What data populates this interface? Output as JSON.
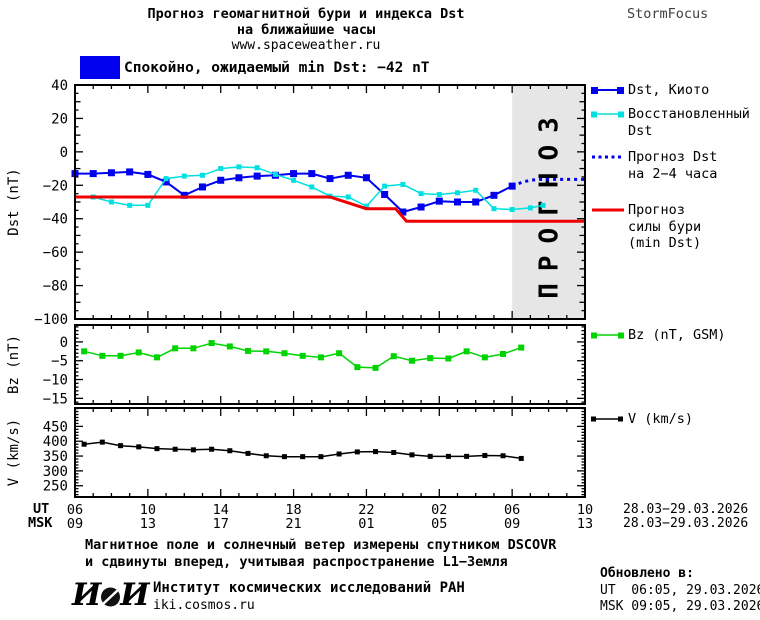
{
  "header": {
    "title_line1": "Прогноз геомагнитной бури и индекса Dst",
    "title_line2": "на ближайшие часы",
    "title_url": "www.spaceweather.ru",
    "brand": "StormFocus"
  },
  "banner": {
    "status_label": "Спокойно, ожидаемый min Dst: −42 nT",
    "swatch_color": "#0000ee"
  },
  "legend": {
    "items": [
      {
        "label": "Dst, Киото",
        "color": "#0000ee",
        "style": "line-markers"
      },
      {
        "lines": [
          "Восстановленный",
          "Dst"
        ],
        "color": "#00e0e0",
        "style": "line-markers"
      },
      {
        "lines": [
          "Прогноз Dst",
          "на 2−4 часа"
        ],
        "color": "#0000ee",
        "style": "dotted"
      },
      {
        "lines": [
          "Прогноз",
          "силы бури",
          "(min Dst)"
        ],
        "color": "#ee0000",
        "style": "solid"
      },
      {
        "label": "Bz (nT, GSM)",
        "color": "#00d400",
        "style": "line-markers"
      },
      {
        "label": "V (km/s)",
        "color": "#000000",
        "style": "line-markers"
      }
    ]
  },
  "xaxis": {
    "ut_label": "UT",
    "msk_label": "MSK",
    "ut_ticks": [
      "06",
      "10",
      "14",
      "18",
      "22",
      "02",
      "06",
      "10"
    ],
    "msk_ticks": [
      "09",
      "13",
      "17",
      "21",
      "01",
      "05",
      "09",
      "13"
    ],
    "ut_date": "28.03−29.03.2026",
    "msk_date": "28.03−29.03.2026"
  },
  "footer": {
    "note_line1": "Магнитное поле и солнечный ветер измерены спутником DSCOVR",
    "note_line2": "и сдвинуты вперед, учитывая распространение L1−Земля",
    "logo_left": "И",
    "logo_right": "И",
    "institute": "Институт космических исследований РАН",
    "site": "iki.cosmos.ru",
    "updated_label": "Обновлено в:",
    "updated_ut": "UT  06:05, 29.03.2026",
    "updated_msk": "MSK 09:05, 29.03.2026"
  },
  "chart_data": [
    {
      "type": "line",
      "title": "Прогноз геомагнитной бури и индекса Dst на ближайшие часы",
      "ylabel": "Dst (nT)",
      "xlim": [
        0,
        28
      ],
      "ylim": [
        40,
        -100
      ],
      "yticks": [
        40,
        20,
        0,
        -20,
        -40,
        -60,
        -80,
        -100
      ],
      "ytick_mid": 10,
      "ytick_minor": 5,
      "xtick_major_step": 4,
      "xtick_minor_step": 1,
      "grid": false,
      "legend_position": "right",
      "forecast_region": {
        "x0": 24,
        "x1": 28,
        "color": "#e6e6e6",
        "label": "ПРОГНОЗ",
        "label_color": "#c8c8c8"
      },
      "series": [
        {
          "name": "Dst, Киото",
          "color": "#0000ee",
          "style": "solid",
          "width": 2,
          "marker": 7,
          "x": [
            0,
            1,
            2,
            3,
            4,
            5,
            6,
            7,
            8,
            9,
            10,
            11,
            12,
            13,
            14,
            15,
            16,
            17,
            18,
            19,
            20,
            21,
            22,
            23,
            24
          ],
          "y": [
            -13,
            -13,
            -12.5,
            -12,
            -13.5,
            -18,
            -26,
            -21,
            -17,
            -15.5,
            -14.5,
            -14,
            -13,
            -13,
            -16,
            -14,
            -15.5,
            -25.5,
            -36,
            -33,
            -29.5,
            -30,
            -30,
            -26,
            -20.5
          ]
        },
        {
          "name": "Восстановленный Dst",
          "color": "#00e0e0",
          "style": "solid",
          "width": 1.5,
          "marker": 5,
          "x": [
            1,
            2,
            3,
            4,
            5,
            6,
            7,
            8,
            9,
            10,
            11,
            12,
            13,
            14,
            15,
            16,
            17,
            18,
            19,
            20,
            21,
            22,
            23,
            24,
            25,
            25.7
          ],
          "y": [
            -27,
            -30,
            -32,
            -32,
            -16,
            -14.5,
            -14,
            -10,
            -9,
            -9.5,
            -13.5,
            -17,
            -21,
            -26.5,
            -27,
            -32.5,
            -20.5,
            -19.5,
            -25,
            -25.5,
            -24.5,
            -23,
            -34,
            -34.5,
            -33.5,
            -32
          ]
        },
        {
          "name": "Прогноз Dst на 2−4 часа",
          "color": "#0000ee",
          "style": "dotted",
          "width": 3,
          "marker": 0,
          "x": [
            24,
            24.6,
            25,
            25.4,
            25.8,
            26.2,
            26.6,
            27,
            27.4,
            27.8,
            28
          ],
          "y": [
            -20.5,
            -18,
            -17,
            -16.5,
            -16.5,
            -16.5,
            -16.5,
            -16.5,
            -16.5,
            -16.5,
            -16.5
          ]
        },
        {
          "name": "Прогноз силы бури (min Dst)",
          "color": "#ee0000",
          "style": "solid",
          "width": 3,
          "marker": 0,
          "x": [
            0,
            14,
            16,
            17.6,
            18.2,
            28
          ],
          "y": [
            -27,
            -27,
            -34,
            -34,
            -41.5,
            -41.5
          ]
        }
      ]
    },
    {
      "type": "line",
      "ylabel": "Bz (nT)",
      "xlim": [
        0,
        28
      ],
      "ylim": [
        4.5,
        -16.5
      ],
      "yticks": [
        0,
        -5,
        -10,
        -15
      ],
      "ytick_mid": null,
      "ytick_minor": 1,
      "xtick_major_step": 4,
      "xtick_minor_step": 1,
      "grid": false,
      "series": [
        {
          "name": "Bz (nT, GSM)",
          "color": "#00d400",
          "style": "solid",
          "width": 1.5,
          "marker": 6,
          "x": [
            0.5,
            1.5,
            2.5,
            3.5,
            4.5,
            5.5,
            6.5,
            7.5,
            8.5,
            9.5,
            10.5,
            11.5,
            12.5,
            13.5,
            14.5,
            15.5,
            16.5,
            17.5,
            18.5,
            19.5,
            20.5,
            21.5,
            22.5,
            23.5,
            24.5
          ],
          "y": [
            -2.5,
            -3.7,
            -3.7,
            -2.8,
            -4.1,
            -1.7,
            -1.7,
            -0.3,
            -1.2,
            -2.4,
            -2.5,
            -3,
            -3.7,
            -4.1,
            -3,
            -6.7,
            -6.9,
            -3.8,
            -5,
            -4.3,
            -4.4,
            -2.5,
            -4.1,
            -3.2,
            -1.5
          ]
        }
      ]
    },
    {
      "type": "line",
      "ylabel": "V (km/s)",
      "xlim": [
        0,
        28
      ],
      "ylim": [
        512,
        212
      ],
      "yticks": [
        450,
        400,
        350,
        300,
        250
      ],
      "ytick_mid": null,
      "ytick_minor": 10,
      "xtick_major_step": 4,
      "xtick_minor_step": 1,
      "grid": false,
      "series": [
        {
          "name": "V (km/s)",
          "color": "#000000",
          "style": "solid",
          "width": 1.5,
          "marker": 5,
          "x": [
            0.5,
            1.5,
            2.5,
            3.5,
            4.5,
            5.5,
            6.5,
            7.5,
            8.5,
            9.5,
            10.5,
            11.5,
            12.5,
            13.5,
            14.5,
            15.5,
            16.5,
            17.5,
            18.5,
            19.5,
            20.5,
            21.5,
            22.5,
            23.5,
            24.5
          ],
          "y": [
            390,
            397,
            385,
            381,
            375,
            373,
            371,
            373,
            368,
            359,
            351,
            348,
            348,
            348,
            357,
            364,
            365,
            362,
            354,
            349,
            349,
            349,
            352,
            351,
            342
          ]
        }
      ]
    }
  ]
}
